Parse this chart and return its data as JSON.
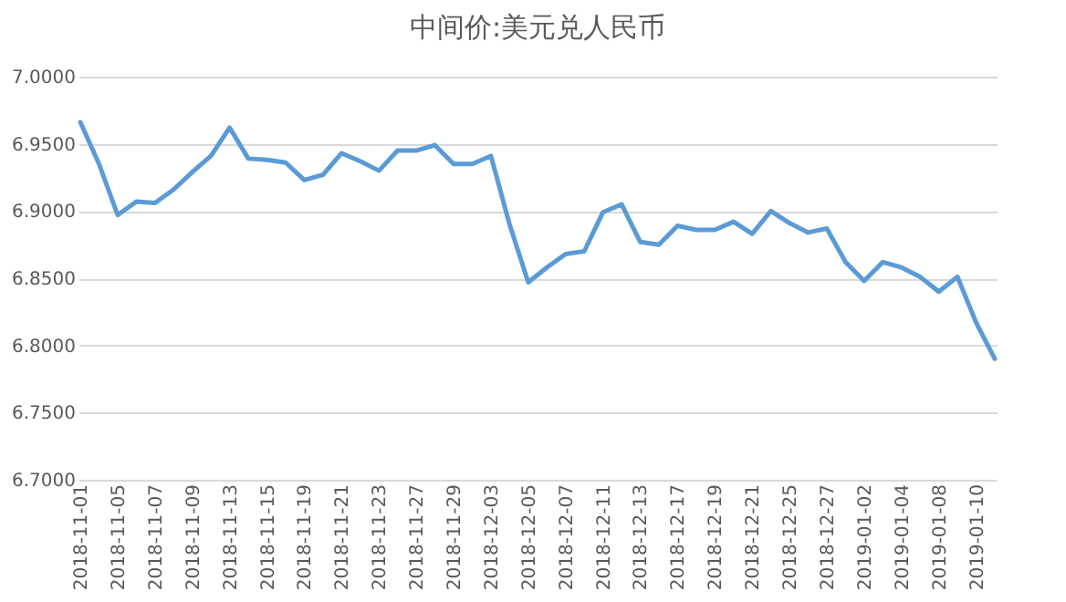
{
  "chart_data": {
    "type": "line",
    "title": "中间价:美元兑人民币",
    "categories": [
      "2018-11-01",
      null,
      "2018-11-05",
      null,
      "2018-11-07",
      null,
      "2018-11-09",
      null,
      "2018-11-13",
      null,
      "2018-11-15",
      null,
      "2018-11-19",
      null,
      "2018-11-21",
      null,
      "2018-11-23",
      null,
      "2018-11-27",
      null,
      "2018-11-29",
      null,
      "2018-12-03",
      null,
      "2018-12-05",
      null,
      "2018-12-07",
      null,
      "2018-12-11",
      null,
      "2018-12-13",
      null,
      "2018-12-17",
      null,
      "2018-12-19",
      null,
      "2018-12-21",
      null,
      "2018-12-25",
      null,
      "2018-12-27",
      null,
      "2019-01-02",
      null,
      "2019-01-04",
      null,
      "2019-01-08",
      null,
      "2019-01-10",
      null
    ],
    "series": [
      {
        "color": "#5b9bd5",
        "values": [
          6.966,
          6.935,
          6.897,
          6.907,
          6.906,
          6.916,
          6.929,
          6.941,
          6.962,
          6.939,
          6.938,
          6.936,
          6.923,
          6.927,
          6.943,
          6.937,
          6.93,
          6.945,
          6.945,
          6.949,
          6.935,
          6.935,
          6.941,
          6.89,
          6.847,
          6.858,
          6.868,
          6.87,
          6.899,
          6.905,
          6.877,
          6.875,
          6.889,
          6.886,
          6.886,
          6.892,
          6.883,
          6.9,
          6.891,
          6.884,
          6.887,
          6.862,
          6.848,
          6.862,
          6.858,
          6.851,
          6.84,
          6.851,
          6.817,
          6.79
        ]
      }
    ],
    "ylim": [
      6.7,
      7.0
    ],
    "yticks": [
      {
        "value": 6.7,
        "label": "6.7000"
      },
      {
        "value": 6.75,
        "label": "6.7500"
      },
      {
        "value": 6.8,
        "label": "6.8000"
      },
      {
        "value": 6.85,
        "label": "6.8500"
      },
      {
        "value": 6.9,
        "label": "6.9000"
      },
      {
        "value": 6.95,
        "label": "6.9500"
      },
      {
        "value": 7.0,
        "label": "7.0000"
      }
    ],
    "grid": "y",
    "marker": "none",
    "line_style": "solid"
  }
}
